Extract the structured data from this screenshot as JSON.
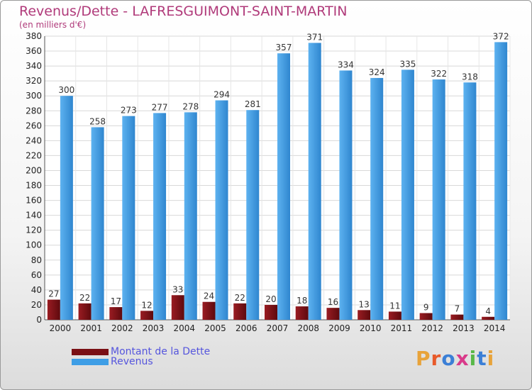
{
  "header": {
    "title": "Revenus/Dette - LAFRESGUIMONT-SAINT-MARTIN",
    "subtitle": "(en milliers d'€)"
  },
  "legend": {
    "items": [
      {
        "label": "Montant de la Dette",
        "color": "#7a0f14"
      },
      {
        "label": "Revenus",
        "color": "#3e9ee6"
      }
    ],
    "placement": "bottom-left"
  },
  "brand": {
    "logo_text": "Proxiti",
    "colors": [
      "#e8a33a",
      "#e85a2a",
      "#3b7fd6",
      "#d93a8a",
      "#58b848",
      "#3b7fd6",
      "#e8a33a"
    ]
  },
  "chart_data": {
    "type": "bar",
    "title": "Revenus/Dette - LAFRESGUIMONT-SAINT-MARTIN",
    "subtitle": "(en milliers d'€)",
    "xlabel": "",
    "ylabel": "",
    "ylim": [
      0,
      380
    ],
    "ytick_step": 20,
    "grid": true,
    "categories": [
      "2000",
      "2001",
      "2002",
      "2003",
      "2004",
      "2005",
      "2006",
      "2007",
      "2008",
      "2009",
      "2010",
      "2011",
      "2012",
      "2013",
      "2014"
    ],
    "series": [
      {
        "name": "Montant de la Dette",
        "color": "#7a0f14",
        "values": [
          27,
          22,
          17,
          12,
          33,
          24,
          22,
          20,
          18,
          16,
          13,
          11,
          9,
          7,
          4
        ]
      },
      {
        "name": "Revenus",
        "color": "#3e9ee6",
        "values": [
          300,
          258,
          273,
          277,
          278,
          294,
          281,
          357,
          371,
          334,
          324,
          335,
          322,
          318,
          372
        ]
      }
    ]
  }
}
